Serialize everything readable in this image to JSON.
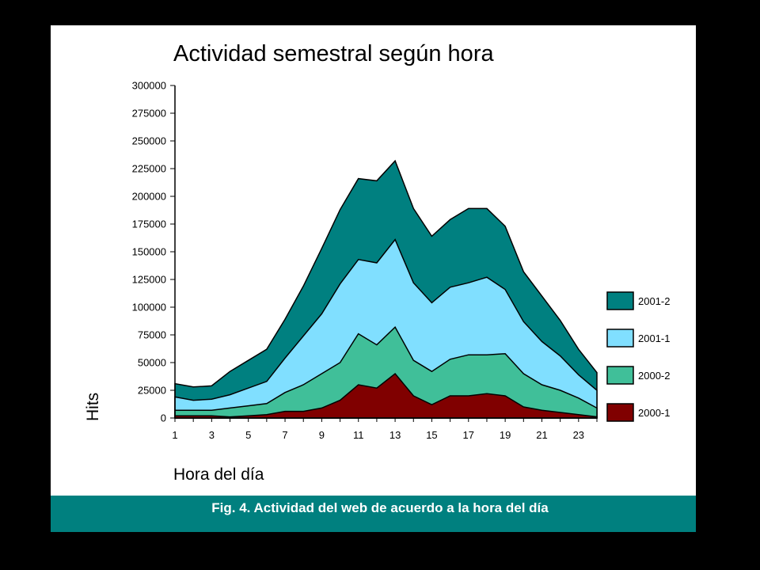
{
  "caption": "Fig. 4. Actividad del web de acuerdo a la hora del día",
  "chart_data": {
    "type": "area",
    "stacked": true,
    "title": "Actividad semestral según hora",
    "xlabel": "Hora del día",
    "ylabel": "Hits",
    "x": [
      1,
      2,
      3,
      4,
      5,
      6,
      7,
      8,
      9,
      10,
      11,
      12,
      13,
      14,
      15,
      16,
      17,
      18,
      19,
      20,
      21,
      22,
      23,
      24
    ],
    "x_ticks": [
      1,
      3,
      5,
      7,
      9,
      11,
      13,
      15,
      17,
      19,
      21,
      23
    ],
    "y_ticks": [
      0,
      25000,
      50000,
      75000,
      100000,
      125000,
      150000,
      175000,
      200000,
      225000,
      250000,
      275000,
      300000
    ],
    "ylim": [
      0,
      300000
    ],
    "grid": false,
    "legend_position": "right",
    "series": [
      {
        "name": "2000-1",
        "color": "#800000",
        "values": [
          2000,
          2000,
          2000,
          1000,
          2000,
          3000,
          6000,
          6000,
          9000,
          16000,
          30000,
          27000,
          40000,
          20000,
          12000,
          20000,
          20000,
          22000,
          20000,
          10000,
          7000,
          5000,
          3000,
          1000
        ]
      },
      {
        "name": "2000-2",
        "color": "#40bf99",
        "values": [
          5000,
          5000,
          5000,
          8000,
          9000,
          10000,
          17000,
          24000,
          31000,
          34000,
          46000,
          39000,
          42000,
          32000,
          30000,
          33000,
          37000,
          35000,
          38000,
          30000,
          23000,
          20000,
          15000,
          8000
        ]
      },
      {
        "name": "2001-1",
        "color": "#80dfff",
        "values": [
          12000,
          9000,
          10000,
          12000,
          16000,
          20000,
          31000,
          44000,
          54000,
          71000,
          67000,
          74000,
          79000,
          70000,
          62000,
          65000,
          65000,
          70000,
          58000,
          47000,
          39000,
          31000,
          21000,
          16000
        ]
      },
      {
        "name": "2001-2",
        "color": "#008080",
        "values": [
          12000,
          12000,
          12000,
          21000,
          25000,
          29000,
          35000,
          45000,
          59000,
          67000,
          73000,
          74000,
          71000,
          67000,
          60000,
          61000,
          67000,
          62000,
          57000,
          45000,
          41000,
          32000,
          23000,
          16000
        ]
      }
    ]
  }
}
